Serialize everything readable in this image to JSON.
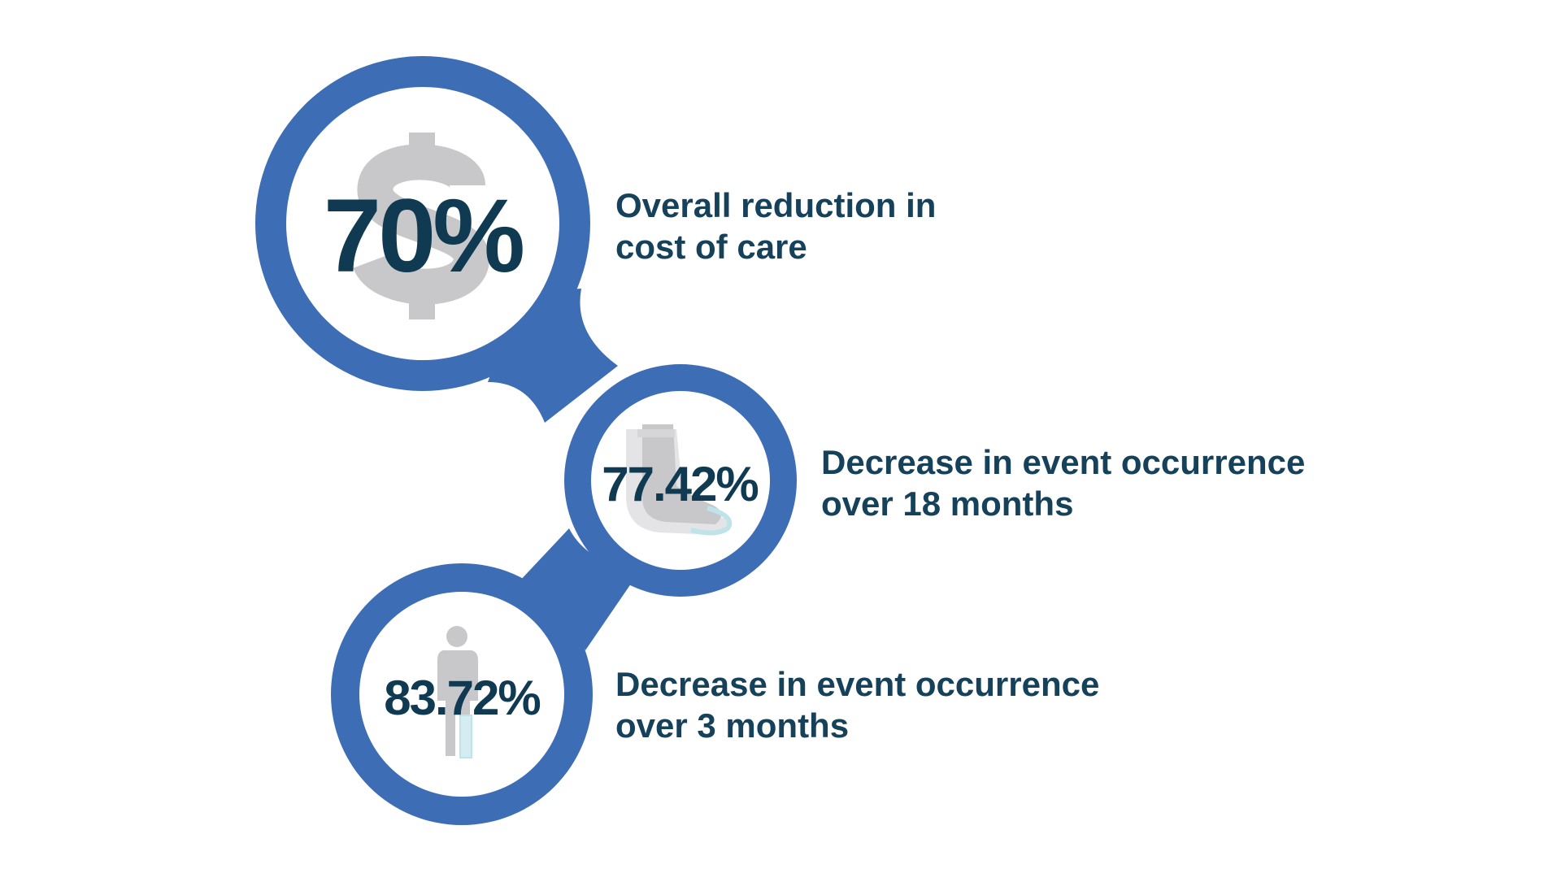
{
  "accent_color": "#3d6db5",
  "icon_color": "#c8c8ca",
  "text_color": "#16415a",
  "stats": [
    {
      "value": "70%",
      "icon": "dollar-sign-icon",
      "caption_line1": "Overall reduction in",
      "caption_line2": "cost of care"
    },
    {
      "value": "77.42%",
      "icon": "foot-cast-icon",
      "caption_line1": "Decrease in event occurrence",
      "caption_line2": "over 18 months"
    },
    {
      "value": "83.72%",
      "icon": "person-leg-brace-icon",
      "caption_line1": "Decrease in event occurrence",
      "caption_line2": "over 3 months"
    }
  ]
}
